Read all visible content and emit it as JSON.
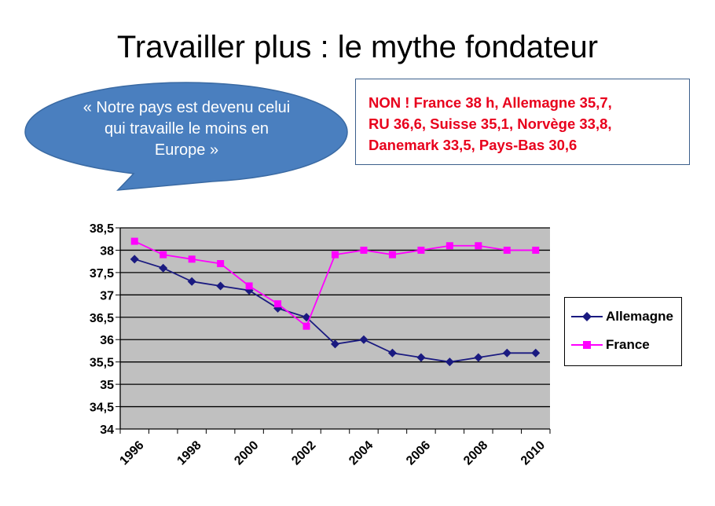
{
  "slide": {
    "title": "Travailler plus : le mythe fondateur"
  },
  "quote_bubble": {
    "text": "« Notre pays est devenu celui qui travaille le moins en Europe »"
  },
  "callout": {
    "lines": [
      "NON ! France 38 h, Allemagne 35,7,",
      "RU 36,6, Suisse 35,1, Norvège 33,8,",
      "Danemark 33,5, Pays-Bas 30,6"
    ]
  },
  "colors": {
    "bubble_fill": "#4a7fbf",
    "plot_background": "#c0c0c0",
    "allemagne": "#1a1a80",
    "france": "#ff00ff",
    "callout_text": "#e8001c"
  },
  "chart_data": {
    "type": "line",
    "title": "",
    "xlabel": "",
    "ylabel": "",
    "ylim": [
      34,
      38.5
    ],
    "y_ticks": [
      "34",
      "34,5",
      "35",
      "35,5",
      "36",
      "36,5",
      "37",
      "37,5",
      "38",
      "38,5"
    ],
    "x_tick_labels": [
      "1996",
      "1998",
      "2000",
      "2002",
      "2004",
      "2006",
      "2008",
      "2010"
    ],
    "x": [
      1996,
      1997,
      1998,
      1999,
      2000,
      2001,
      2002,
      2003,
      2004,
      2005,
      2006,
      2007,
      2008,
      2009,
      2010
    ],
    "grid": true,
    "legend_position": "right",
    "series": [
      {
        "name": "Allemagne",
        "marker": "diamond",
        "values": [
          37.8,
          37.6,
          37.3,
          37.2,
          37.1,
          36.7,
          36.5,
          35.9,
          36.0,
          35.7,
          35.6,
          35.5,
          35.6,
          35.7,
          35.7
        ]
      },
      {
        "name": "France",
        "marker": "square",
        "values": [
          38.2,
          37.9,
          37.8,
          37.7,
          37.2,
          36.8,
          36.3,
          37.9,
          38.0,
          37.9,
          38.0,
          38.1,
          38.1,
          38.0,
          38.0
        ]
      }
    ]
  }
}
